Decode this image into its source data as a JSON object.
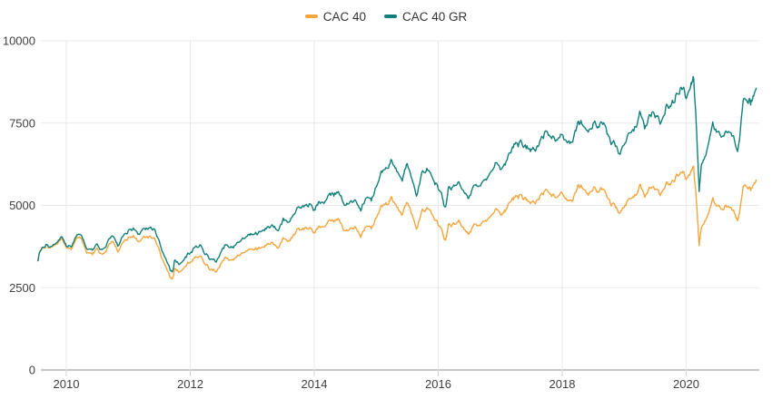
{
  "legend": {
    "items": [
      {
        "label": "CAC 40",
        "color": "#f4a53c"
      },
      {
        "label": "CAC 40 GR",
        "color": "#11807a"
      }
    ]
  },
  "colors": {
    "background": "#ffffff",
    "grid": "#e8e8e8",
    "axis_line": "#8c8c8c",
    "tick": "#cfcfcf",
    "text": "#404040"
  },
  "chart_data": {
    "type": "line",
    "title": "",
    "xlabel": "",
    "ylabel": "",
    "grid": true,
    "legend_position": "top-center",
    "x_ticks": [
      2010,
      2012,
      2014,
      2016,
      2018,
      2020
    ],
    "y_ticks": [
      0,
      2500,
      5000,
      7500,
      10000
    ],
    "xlim": [
      2009.45,
      2021.23
    ],
    "ylim": [
      0,
      10000
    ],
    "x": [
      2009.54,
      2009.58,
      2009.67,
      2009.75,
      2009.83,
      2009.92,
      2010,
      2010.08,
      2010.17,
      2010.25,
      2010.33,
      2010.42,
      2010.5,
      2010.58,
      2010.67,
      2010.75,
      2010.83,
      2010.92,
      2011,
      2011.08,
      2011.17,
      2011.25,
      2011.33,
      2011.42,
      2011.5,
      2011.58,
      2011.67,
      2011.71,
      2011.75,
      2011.83,
      2011.92,
      2012,
      2012.08,
      2012.17,
      2012.25,
      2012.33,
      2012.42,
      2012.5,
      2012.58,
      2012.67,
      2012.75,
      2012.83,
      2012.92,
      2013,
      2013.08,
      2013.17,
      2013.25,
      2013.33,
      2013.42,
      2013.5,
      2013.58,
      2013.67,
      2013.75,
      2013.83,
      2013.92,
      2014,
      2014.08,
      2014.17,
      2014.25,
      2014.33,
      2014.42,
      2014.5,
      2014.58,
      2014.67,
      2014.75,
      2014.83,
      2014.92,
      2015,
      2015.08,
      2015.17,
      2015.25,
      2015.33,
      2015.42,
      2015.5,
      2015.58,
      2015.65,
      2015.75,
      2015.83,
      2015.92,
      2016,
      2016.08,
      2016.12,
      2016.17,
      2016.25,
      2016.33,
      2016.42,
      2016.49,
      2016.58,
      2016.67,
      2016.75,
      2016.83,
      2016.92,
      2017,
      2017.08,
      2017.17,
      2017.25,
      2017.33,
      2017.42,
      2017.5,
      2017.58,
      2017.67,
      2017.75,
      2017.83,
      2017.92,
      2018,
      2018.08,
      2018.17,
      2018.25,
      2018.33,
      2018.42,
      2018.5,
      2018.58,
      2018.67,
      2018.75,
      2018.83,
      2018.92,
      2019,
      2019.08,
      2019.17,
      2019.25,
      2019.33,
      2019.42,
      2019.5,
      2019.58,
      2019.67,
      2019.75,
      2019.83,
      2019.92,
      2020,
      2020.08,
      2020.12,
      2020.17,
      2020.21,
      2020.25,
      2020.33,
      2020.43,
      2020.5,
      2020.58,
      2020.67,
      2020.75,
      2020.83,
      2020.92,
      2021,
      2021.04,
      2021.08,
      2021.13
    ],
    "series": [
      {
        "name": "CAC 40",
        "color": "#f4a53c",
        "values": [
          3300,
          3650,
          3800,
          3700,
          3750,
          3940,
          3740,
          3710,
          3980,
          3950,
          3510,
          3440,
          3640,
          3490,
          3715,
          3830,
          3610,
          3900,
          4000,
          4110,
          3990,
          4110,
          4010,
          3980,
          3670,
          3230,
          2850,
          2720,
          3100,
          3010,
          3160,
          3300,
          3450,
          3420,
          3210,
          3050,
          2970,
          3250,
          3410,
          3350,
          3430,
          3560,
          3640,
          3730,
          3720,
          3730,
          3860,
          3950,
          3740,
          3990,
          3930,
          4140,
          4300,
          4290,
          4300,
          4170,
          4400,
          4390,
          4490,
          4560,
          4500,
          4250,
          4380,
          4420,
          4000,
          4390,
          4270,
          4600,
          4950,
          5030,
          5280,
          5010,
          4790,
          5080,
          4650,
          4370,
          4900,
          4930,
          4640,
          4420,
          4100,
          3950,
          4390,
          4430,
          4510,
          4240,
          4100,
          4440,
          4450,
          4510,
          4580,
          4860,
          4750,
          4860,
          5120,
          5270,
          5280,
          5120,
          5090,
          5080,
          5330,
          5500,
          5370,
          5310,
          5480,
          5250,
          5170,
          5520,
          5580,
          5320,
          5510,
          5410,
          5490,
          5090,
          5000,
          4730,
          4990,
          5240,
          5350,
          5580,
          5210,
          5540,
          5520,
          5350,
          5680,
          5730,
          5900,
          5980,
          5810,
          6020,
          6090,
          5000,
          3755,
          4400,
          4570,
          5150,
          4940,
          4850,
          4990,
          4870,
          4600,
          5520,
          5550,
          5400,
          5600,
          5770
        ]
      },
      {
        "name": "CAC 40 GR",
        "color": "#11807a",
        "values": [
          3300,
          3660,
          3820,
          3730,
          3790,
          4000,
          3800,
          3780,
          4070,
          4050,
          3610,
          3550,
          3770,
          3620,
          3870,
          4000,
          3780,
          4090,
          4210,
          4340,
          4220,
          4360,
          4270,
          4250,
          3930,
          3470,
          3070,
          2930,
          3350,
          3260,
          3430,
          3590,
          3770,
          3740,
          3520,
          3360,
          3280,
          3600,
          3790,
          3730,
          3830,
          3990,
          4090,
          4200,
          4200,
          4220,
          4380,
          4500,
          4270,
          4570,
          4510,
          4770,
          4970,
          4970,
          5000,
          4860,
          5140,
          5140,
          5280,
          5370,
          5320,
          5040,
          5210,
          5270,
          4780,
          5260,
          5130,
          5540,
          5980,
          6100,
          6420,
          6110,
          5860,
          6230,
          5720,
          5380,
          6060,
          6110,
          5770,
          5510,
          5130,
          4940,
          5510,
          5570,
          5690,
          5360,
          5190,
          5650,
          5680,
          5770,
          5870,
          6250,
          6130,
          6290,
          6640,
          6860,
          6890,
          6700,
          6680,
          6680,
          7030,
          7280,
          7130,
          7070,
          7310,
          7030,
          6940,
          7430,
          7530,
          7200,
          7480,
          7360,
          7490,
          6970,
          6860,
          6510,
          6890,
          7250,
          7430,
          7770,
          7270,
          7760,
          7750,
          7530,
          8020,
          8110,
          8380,
          8520,
          8300,
          8620,
          8760,
          7180,
          5390,
          6320,
          6580,
          7440,
          7160,
          7040,
          7270,
          7110,
          6740,
          8110,
          8180,
          7980,
          8300,
          8560
        ]
      }
    ]
  }
}
